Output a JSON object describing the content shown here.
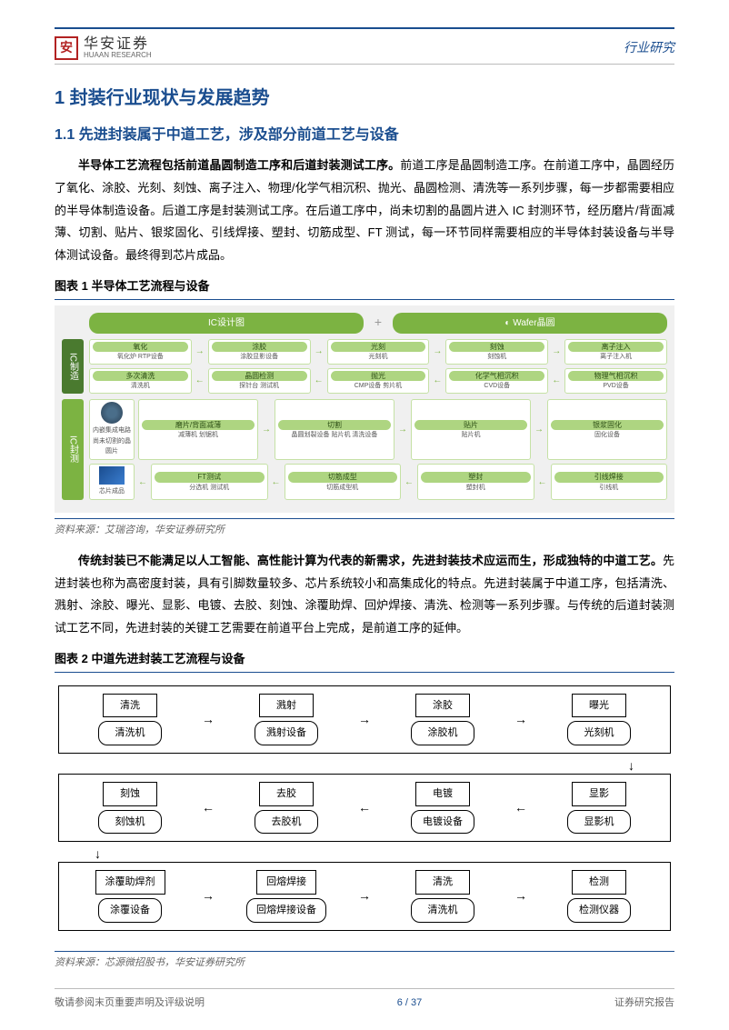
{
  "header": {
    "logo_cn": "华安证券",
    "logo_en": "HUAAN RESEARCH",
    "logo_char": "安",
    "category": "行业研究"
  },
  "h1": "1 封装行业现状与发展趋势",
  "h2_1": "1.1 先进封装属于中道工艺，涉及部分前道工艺与设备",
  "para1_bold": "半导体工艺流程包括前道晶圆制造工序和后道封装测试工序。",
  "para1_rest": "前道工序是晶圆制造工序。在前道工序中，晶圆经历了氧化、涂胶、光刻、刻蚀、离子注入、物理/化学气相沉积、抛光、晶圆检测、清洗等一系列步骤，每一步都需要相应的半导体制造设备。后道工序是封装测试工序。在后道工序中，尚未切割的晶圆片进入 IC 封测环节，经历磨片/背面减薄、切割、贴片、银浆固化、引线焊接、塑封、切筋成型、FT 测试，每一环节同样需要相应的半导体封装设备与半导体测试设备。最终得到芯片成品。",
  "fig1_title": "图表 1 半导体工艺流程与设备",
  "fig1_source": "资料来源：艾瑞咨询，华安证券研究所",
  "fig1": {
    "header_left": "IC设计图",
    "header_right": "Wafer晶圆",
    "tab_manufacture": "IC制造",
    "tab_test": "IC封测",
    "wafer_label": "内嵌集成电路尚未切割的晶圆片",
    "chip_label": "芯片成品",
    "row1": [
      {
        "step": "氧化",
        "equip": "氧化炉 RTP设备"
      },
      {
        "step": "涂胶",
        "equip": "涂胶显影设备"
      },
      {
        "step": "光刻",
        "equip": "光刻机"
      },
      {
        "step": "刻蚀",
        "equip": "刻蚀机"
      },
      {
        "step": "离子注入",
        "equip": "离子注入机"
      }
    ],
    "row2": [
      {
        "step": "多次清洗",
        "equip": "清洗机"
      },
      {
        "step": "晶圆检测",
        "equip": "探针台 测试机"
      },
      {
        "step": "抛光",
        "equip": "CMP设备 剪片机"
      },
      {
        "step": "化学气相沉积",
        "equip": "CVD设备"
      },
      {
        "step": "物理气相沉积",
        "equip": "PVD设备"
      }
    ],
    "row3": [
      {
        "step": "磨片/背面减薄",
        "equip": "减薄机 划锯机"
      },
      {
        "step": "切割",
        "equip": "晶圆划裂设备 贴片机 清洗设备"
      },
      {
        "step": "贴片",
        "equip": "贴片机"
      },
      {
        "step": "银浆固化",
        "equip": "固化设备"
      }
    ],
    "row4": [
      {
        "step": "FT测试",
        "equip": "分选机 测试机"
      },
      {
        "step": "切筋成型",
        "equip": "切筋成型机"
      },
      {
        "step": "塑封",
        "equip": "塑封机"
      },
      {
        "step": "引线焊接",
        "equip": "引线机"
      }
    ]
  },
  "para2_bold": "传统封装已不能满足以人工智能、高性能计算为代表的新需求，先进封装技术应运而生，形成独特的中道工艺。",
  "para2_rest": "先进封装也称为高密度封装，具有引脚数量较多、芯片系统较小和高集成化的特点。先进封装属于中道工序，包括清洗、溅射、涂胶、曝光、显影、电镀、去胶、刻蚀、涂覆助焊、回炉焊接、清洗、检测等一系列步骤。与传统的后道封装测试工艺不同，先进封装的关键工艺需要在前道平台上完成，是前道工序的延伸。",
  "fig2_title": "图表 2 中道先进封装工艺流程与设备",
  "fig2_source": "资料来源：芯源微招股书，华安证券研究所",
  "fig2": {
    "g1": [
      {
        "step": "清洗",
        "equip": "清洗机"
      },
      {
        "step": "溅射",
        "equip": "溅射设备"
      },
      {
        "step": "涂胶",
        "equip": "涂胶机"
      },
      {
        "step": "曝光",
        "equip": "光刻机"
      }
    ],
    "g2": [
      {
        "step": "刻蚀",
        "equip": "刻蚀机"
      },
      {
        "step": "去胶",
        "equip": "去胶机"
      },
      {
        "step": "电镀",
        "equip": "电镀设备"
      },
      {
        "step": "显影",
        "equip": "显影机"
      }
    ],
    "g3": [
      {
        "step": "涂覆助焊剂",
        "equip": "涂覆设备"
      },
      {
        "step": "回熔焊接",
        "equip": "回熔焊接设备"
      },
      {
        "step": "清洗",
        "equip": "清洗机"
      },
      {
        "step": "检测",
        "equip": "检测仪器"
      }
    ]
  },
  "footer": {
    "left": "敬请参阅末页重要声明及评级说明",
    "center_page": "6",
    "center_total": "37",
    "right": "证券研究报告"
  }
}
